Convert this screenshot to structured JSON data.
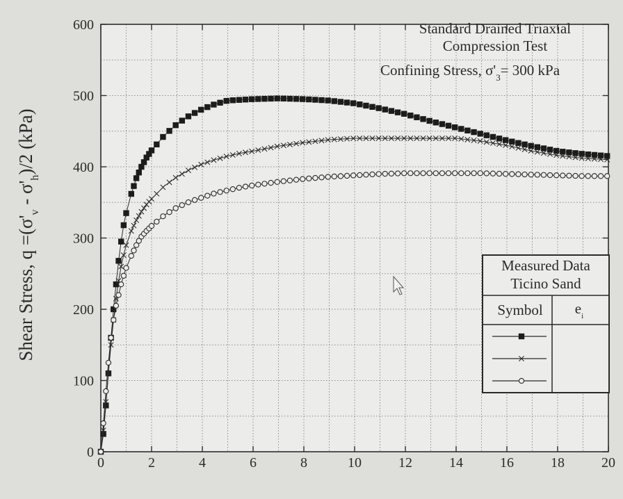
{
  "chart_data": {
    "type": "line",
    "title": "Standard Drained Triaxial",
    "subtitle": "Compression Test",
    "annotation": {
      "prefix": "Confining Stress, σ'",
      "subscript": "3",
      "suffix": "= 300 kPa"
    },
    "ylabel": {
      "p1": "Shear Stress, q =(σ'",
      "s1": "v",
      "p2": " - σ'",
      "s2": "h",
      "p3": ")/2  (kPa)"
    },
    "xlim": [
      0,
      20
    ],
    "ylim": [
      0,
      600
    ],
    "x_ticks": [
      0,
      2,
      4,
      6,
      8,
      10,
      12,
      14,
      16,
      18,
      20
    ],
    "y_ticks": [
      0,
      100,
      200,
      300,
      400,
      500,
      600
    ],
    "grid": true,
    "legend": {
      "position": "right",
      "title_line1": "Measured Data",
      "title_line2": "Ticino Sand",
      "col1": "Symbol",
      "col2": "e",
      "col2_sub": "i"
    },
    "series": [
      {
        "marker": "filled-square",
        "x": [
          0,
          0.1,
          0.2,
          0.3,
          0.4,
          0.5,
          0.6,
          0.7,
          0.8,
          0.9,
          1.0,
          1.2,
          1.4,
          1.6,
          1.8,
          2.0,
          2.5,
          3.0,
          3.5,
          4.0,
          4.5,
          5.0,
          5.5,
          6.0,
          7.0,
          8.0,
          9.0,
          10.0,
          11.0,
          12.0,
          13.0,
          14.0,
          15.0,
          16.0,
          17.0,
          18.0,
          19.0,
          20.0
        ],
        "y": [
          0,
          25,
          65,
          110,
          160,
          200,
          235,
          268,
          295,
          318,
          335,
          362,
          384,
          400,
          413,
          423,
          444,
          460,
          472,
          481,
          488,
          493,
          494,
          495,
          496,
          495,
          493,
          489,
          482,
          474,
          464,
          455,
          446,
          437,
          429,
          422,
          418,
          415
        ]
      },
      {
        "marker": "x",
        "x": [
          0,
          0.1,
          0.2,
          0.3,
          0.4,
          0.5,
          0.6,
          0.7,
          0.8,
          0.9,
          1.0,
          1.2,
          1.4,
          1.6,
          1.8,
          2.0,
          2.5,
          3.0,
          3.5,
          4.0,
          4.5,
          5.0,
          5.5,
          6.0,
          7.0,
          8.0,
          9.0,
          10.0,
          11.0,
          12.0,
          13.0,
          14.0,
          15.0,
          16.0,
          17.0,
          18.0,
          19.0,
          20.0
        ],
        "y": [
          0,
          30,
          70,
          110,
          150,
          185,
          215,
          240,
          260,
          276,
          290,
          310,
          325,
          337,
          347,
          355,
          373,
          386,
          396,
          404,
          410,
          415,
          419,
          422,
          429,
          434,
          438,
          440,
          440,
          440,
          440,
          440,
          436,
          430,
          422,
          416,
          412,
          410
        ]
      },
      {
        "marker": "open-circle",
        "x": [
          0,
          0.1,
          0.2,
          0.3,
          0.4,
          0.5,
          0.6,
          0.7,
          0.8,
          0.9,
          1.0,
          1.2,
          1.4,
          1.6,
          1.8,
          2.0,
          2.5,
          3.0,
          3.5,
          4.0,
          4.5,
          5.0,
          5.5,
          6.0,
          7.0,
          8.0,
          9.0,
          10.0,
          11.0,
          12.0,
          13.0,
          14.0,
          15.0,
          16.0,
          17.0,
          18.0,
          19.0,
          20.0
        ],
        "y": [
          0,
          40,
          85,
          125,
          160,
          185,
          205,
          220,
          235,
          247,
          258,
          275,
          290,
          302,
          310,
          317,
          332,
          343,
          351,
          357,
          363,
          367,
          371,
          374,
          379,
          383,
          386,
          388,
          390,
          391,
          391,
          391,
          391,
          390,
          389,
          388,
          387,
          387
        ]
      }
    ]
  }
}
